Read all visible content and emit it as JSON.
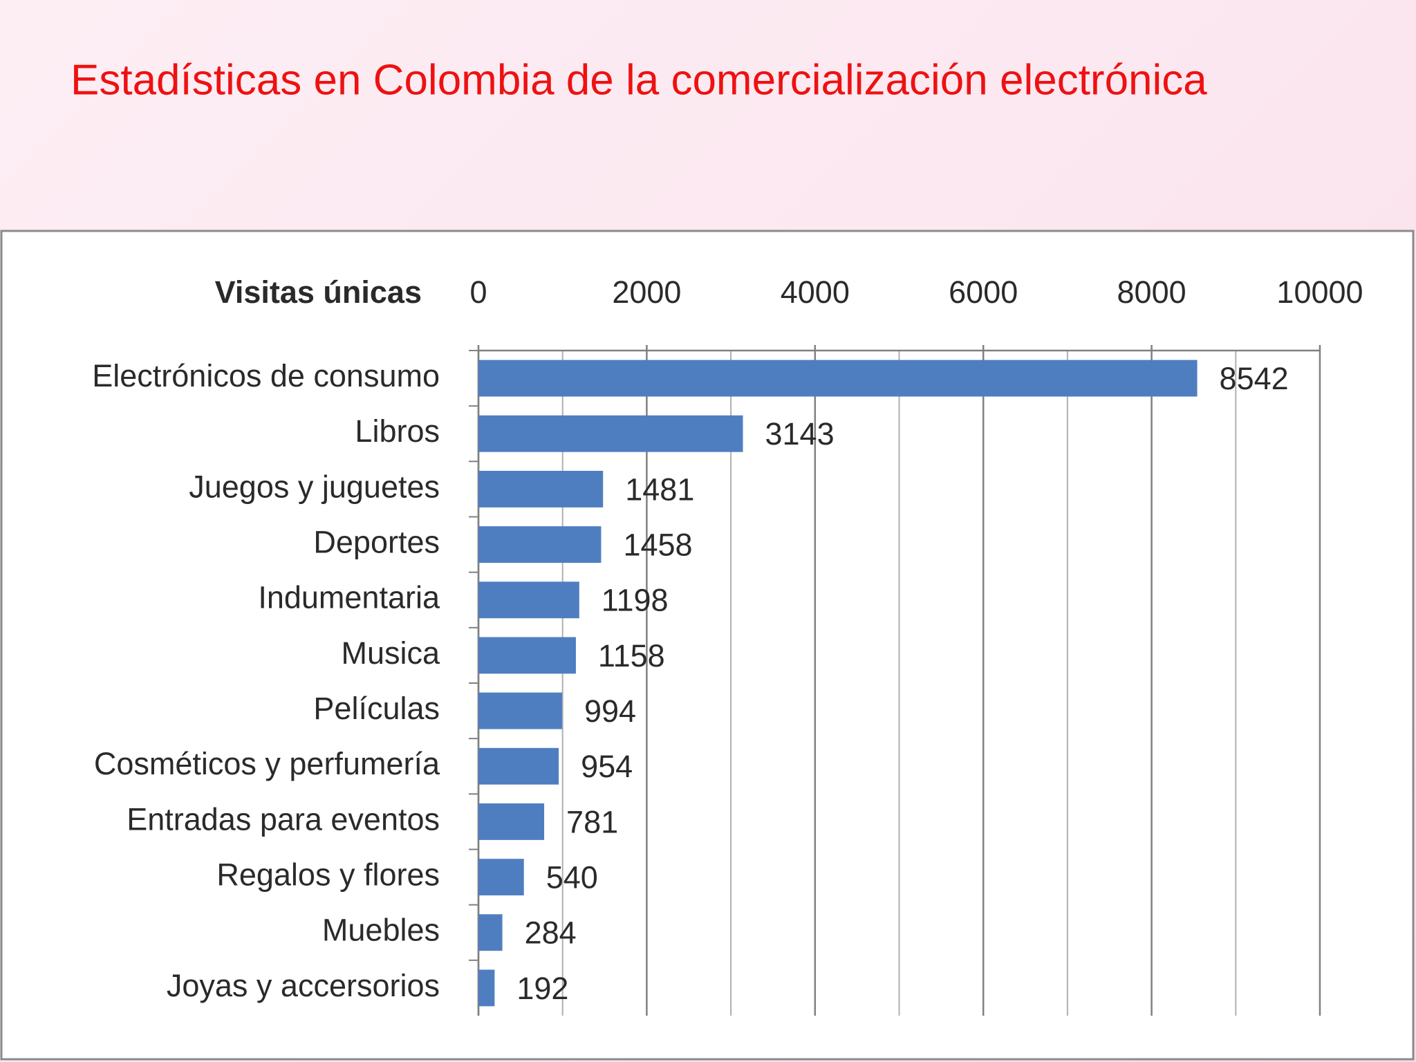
{
  "chart_data": {
    "type": "bar",
    "orientation": "horizontal",
    "title": "Estadísticas en Colombia de la comercialización electrónica",
    "xlabel": "Visitas únicas",
    "categories": [
      "Electrónicos de consumo",
      "Libros",
      "Juegos y juguetes",
      "Deportes",
      "Indumentaria",
      "Musica",
      "Películas",
      "Cosméticos y perfumería",
      "Entradas para eventos",
      "Regalos y flores",
      "Muebles",
      "Joyas y accersorios"
    ],
    "values": [
      8542,
      3143,
      1481,
      1458,
      1198,
      1158,
      994,
      954,
      781,
      540,
      284,
      192
    ],
    "color": "#4f7ec0",
    "xlim": [
      0,
      10000
    ],
    "xticks": [
      0,
      2000,
      4000,
      6000,
      8000,
      10000
    ],
    "xminor": [
      1000,
      3000,
      5000,
      7000,
      9000
    ],
    "grid": true
  }
}
